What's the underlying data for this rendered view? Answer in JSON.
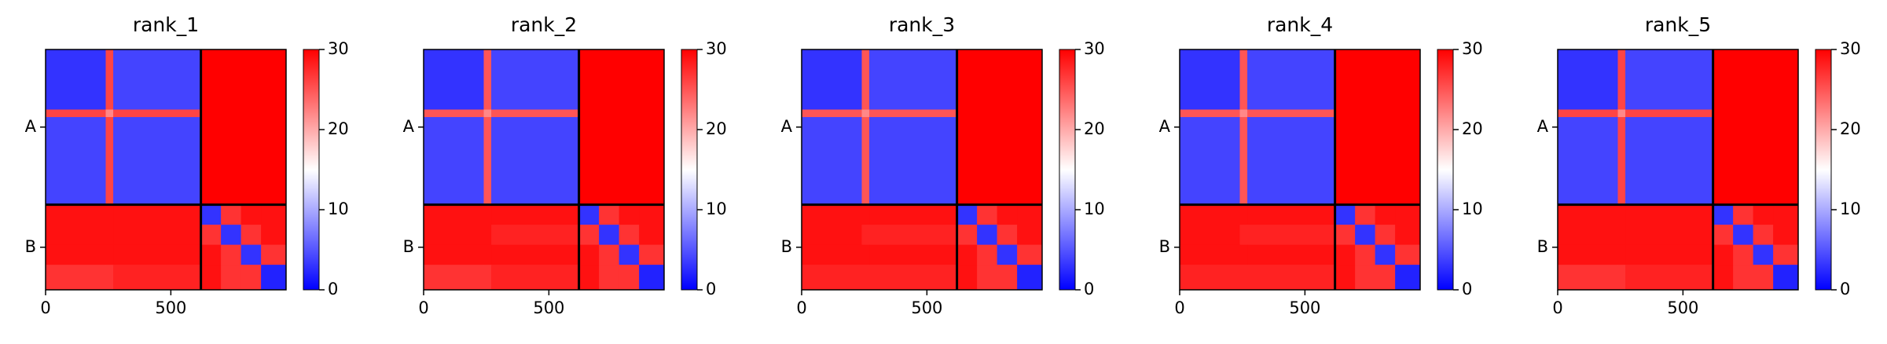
{
  "chart_data": [
    {
      "type": "heatmap",
      "title": "rank_1",
      "bins": [
        0,
        240,
        270,
        620,
        700,
        780,
        860,
        960
      ],
      "matrix": [
        [
          3,
          26,
          4,
          30,
          30,
          30,
          30
        ],
        [
          26,
          22,
          26,
          30,
          30,
          30,
          30
        ],
        [
          4,
          26,
          4,
          30,
          30,
          30,
          30
        ],
        [
          29,
          29,
          29,
          3,
          27,
          29,
          29
        ],
        [
          29,
          29,
          29,
          27,
          3,
          27,
          29
        ],
        [
          29,
          29,
          29,
          29,
          27,
          3,
          27
        ],
        [
          27,
          27,
          28,
          29,
          27,
          27,
          2
        ]
      ],
      "chain_breaks": [
        620
      ],
      "xlim": [
        0,
        960
      ],
      "ylim": [
        960,
        0
      ],
      "xticks": [
        0,
        500
      ],
      "yticks": [
        {
          "value": 310,
          "label": "A"
        },
        {
          "value": 790,
          "label": "B"
        }
      ],
      "clim": [
        0,
        30
      ],
      "cticks": [
        0,
        10,
        20,
        30
      ]
    },
    {
      "type": "heatmap",
      "title": "rank_2",
      "bins": [
        0,
        240,
        270,
        620,
        700,
        780,
        860,
        960
      ],
      "matrix": [
        [
          3,
          25,
          4,
          30,
          30,
          30,
          30
        ],
        [
          25,
          22,
          25,
          30,
          30,
          30,
          30
        ],
        [
          4,
          25,
          4,
          30,
          30,
          30,
          30
        ],
        [
          29,
          29,
          29,
          3,
          27,
          29,
          29
        ],
        [
          29,
          29,
          28,
          27,
          3,
          27,
          29
        ],
        [
          29,
          29,
          29,
          29,
          27,
          3,
          27
        ],
        [
          27,
          27,
          28,
          29,
          27,
          27,
          2
        ]
      ],
      "chain_breaks": [
        620
      ],
      "xlim": [
        0,
        960
      ],
      "ylim": [
        960,
        0
      ],
      "xticks": [
        0,
        500
      ],
      "yticks": [
        {
          "value": 310,
          "label": "A"
        },
        {
          "value": 790,
          "label": "B"
        }
      ],
      "clim": [
        0,
        30
      ],
      "cticks": [
        0,
        10,
        20,
        30
      ]
    },
    {
      "type": "heatmap",
      "title": "rank_3",
      "bins": [
        0,
        240,
        270,
        620,
        700,
        780,
        860,
        960
      ],
      "matrix": [
        [
          3,
          25,
          4,
          30,
          30,
          30,
          30
        ],
        [
          25,
          22,
          25,
          30,
          30,
          30,
          30
        ],
        [
          4,
          25,
          4,
          30,
          30,
          30,
          30
        ],
        [
          29,
          29,
          29,
          3,
          27,
          29,
          29
        ],
        [
          29,
          28,
          28,
          27,
          3,
          27,
          29
        ],
        [
          29,
          29,
          29,
          29,
          27,
          3,
          27
        ],
        [
          28,
          28,
          28,
          29,
          27,
          27,
          2
        ]
      ],
      "chain_breaks": [
        620
      ],
      "xlim": [
        0,
        960
      ],
      "ylim": [
        960,
        0
      ],
      "xticks": [
        0,
        500
      ],
      "yticks": [
        {
          "value": 310,
          "label": "A"
        },
        {
          "value": 790,
          "label": "B"
        }
      ],
      "clim": [
        0,
        30
      ],
      "cticks": [
        0,
        10,
        20,
        30
      ]
    },
    {
      "type": "heatmap",
      "title": "rank_4",
      "bins": [
        0,
        240,
        270,
        620,
        700,
        780,
        860,
        960
      ],
      "matrix": [
        [
          3,
          25,
          4,
          30,
          30,
          30,
          30
        ],
        [
          25,
          22,
          25,
          30,
          30,
          30,
          30
        ],
        [
          4,
          25,
          4,
          30,
          30,
          30,
          30
        ],
        [
          29,
          29,
          29,
          3,
          27,
          29,
          29
        ],
        [
          29,
          28,
          28,
          27,
          3,
          27,
          29
        ],
        [
          29,
          29,
          29,
          29,
          27,
          3,
          27
        ],
        [
          28,
          28,
          28,
          29,
          27,
          27,
          2
        ]
      ],
      "chain_breaks": [
        620
      ],
      "xlim": [
        0,
        960
      ],
      "ylim": [
        960,
        0
      ],
      "xticks": [
        0,
        500
      ],
      "yticks": [
        {
          "value": 310,
          "label": "A"
        },
        {
          "value": 790,
          "label": "B"
        }
      ],
      "clim": [
        0,
        30
      ],
      "cticks": [
        0,
        10,
        20,
        30
      ]
    },
    {
      "type": "heatmap",
      "title": "rank_5",
      "bins": [
        0,
        240,
        270,
        620,
        700,
        780,
        860,
        960
      ],
      "matrix": [
        [
          3,
          26,
          4,
          30,
          30,
          30,
          30
        ],
        [
          26,
          22,
          26,
          30,
          30,
          30,
          30
        ],
        [
          4,
          26,
          4,
          30,
          30,
          30,
          30
        ],
        [
          29,
          29,
          29,
          3,
          27,
          29,
          29
        ],
        [
          29,
          29,
          29,
          27,
          3,
          27,
          29
        ],
        [
          29,
          29,
          29,
          29,
          27,
          3,
          27
        ],
        [
          27,
          27,
          28,
          29,
          27,
          27,
          2
        ]
      ],
      "chain_breaks": [
        620
      ],
      "xlim": [
        0,
        960
      ],
      "ylim": [
        960,
        0
      ],
      "xticks": [
        0,
        500
      ],
      "yticks": [
        {
          "value": 310,
          "label": "A"
        },
        {
          "value": 790,
          "label": "B"
        }
      ],
      "clim": [
        0,
        30
      ],
      "cticks": [
        0,
        10,
        20,
        30
      ]
    }
  ]
}
